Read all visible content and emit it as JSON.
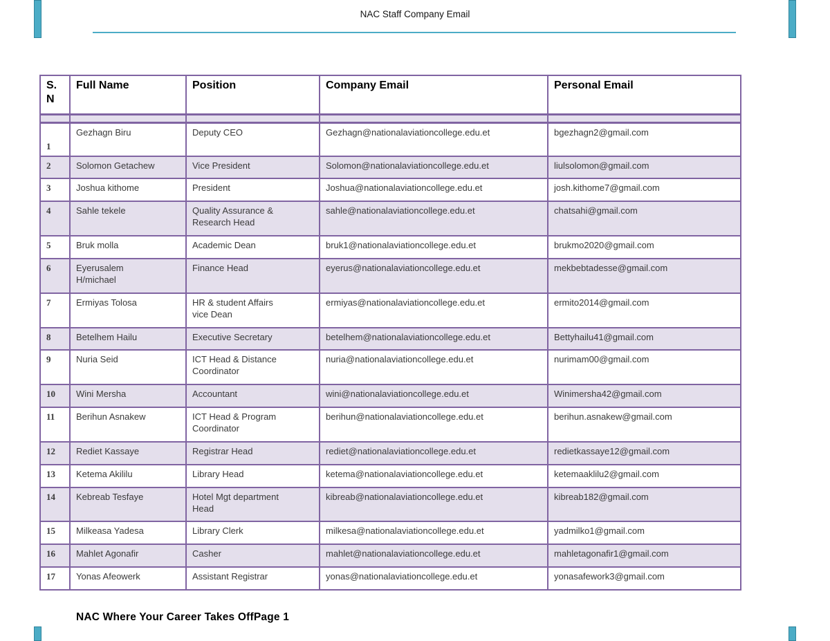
{
  "header": {
    "title": "NAC Staff Company Email"
  },
  "footer": {
    "text": "NAC Where Your Career Takes Off",
    "page_label": "Page 1"
  },
  "colors": {
    "accent_teal": "#4bacc6",
    "accent_teal_border": "#31859c",
    "table_border_purple": "#8064a2",
    "row_shade_lavender": "#e4dfec"
  },
  "table": {
    "columns": [
      "S.\nN",
      "Full Name",
      "Position",
      "Company Email",
      "Personal Email"
    ],
    "rows": [
      {
        "spacer": true,
        "sn": "",
        "name": "",
        "position": "",
        "company_email": "",
        "personal_email": ""
      },
      {
        "sn": "1",
        "name": "Gezhagn Biru",
        "position": "Deputy CEO",
        "company_email": "Gezhagn@nationalaviationcollege.edu.et",
        "personal_email": "bgezhagn2@gmail.com",
        "emphasis": "large"
      },
      {
        "sn": "2",
        "name": "Solomon Getachew",
        "position": "Vice President",
        "company_email": "Solomon@nationalaviationcollege.edu.et",
        "personal_email": "liulsolomon@gmail.com"
      },
      {
        "sn": "3",
        "name": "Joshua kithome",
        "position": "President",
        "company_email": "Joshua@nationalaviationcollege.edu.et",
        "personal_email": "josh.kithome7@gmail.com"
      },
      {
        "sn": "4",
        "name": "Sahle tekele",
        "position": "Quality Assurance &\nResearch Head",
        "company_email": "sahle@nationalaviationcollege.edu.et",
        "personal_email": "chatsahi@gmail.com"
      },
      {
        "sn": "5",
        "name": "Bruk molla",
        "position": "Academic Dean",
        "company_email": "bruk1@nationalaviationcollege.edu.et",
        "personal_email": "brukmo2020@gmail.com"
      },
      {
        "sn": "6",
        "name": "Eyerusalem\nH/michael",
        "position": "Finance Head",
        "company_email": "eyerus@nationalaviationcollege.edu.et",
        "personal_email": "mekbebtadesse@gmail.com"
      },
      {
        "sn": "7",
        "name": "Ermiyas Tolosa",
        "position": "HR & student Affairs\nvice Dean",
        "company_email": "ermiyas@nationalaviationcollege.edu.et",
        "personal_email": "ermito2014@gmail.com",
        "emphasis": "position-large"
      },
      {
        "sn": "8",
        "name": "Betelhem Hailu",
        "position": "Executive Secretary",
        "company_email": "betelhem@nationalaviationcollege.edu.et",
        "personal_email": "Bettyhailu41@gmail.com"
      },
      {
        "sn": "9",
        "name": "Nuria Seid",
        "position": "ICT Head & Distance\nCoordinator",
        "company_email": "nuria@nationalaviationcollege.edu.et",
        "personal_email": "nurimam00@gmail.com"
      },
      {
        "sn": "10",
        "name": "Wini Mersha",
        "position": "Accountant",
        "company_email": "wini@nationalaviationcollege.edu.et",
        "personal_email": "Winimersha42@gmail.com"
      },
      {
        "sn": "11",
        "name": "Berihun Asnakew",
        "position": "ICT Head & Program\nCoordinator",
        "company_email": "berihun@nationalaviationcollege.edu.et",
        "personal_email": "berihun.asnakew@gmail.com"
      },
      {
        "sn": "12",
        "name": "Rediet Kassaye",
        "position": "Registrar Head",
        "company_email": "rediet@nationalaviationcollege.edu.et",
        "personal_email": "redietkassaye12@gmail.com"
      },
      {
        "sn": "13",
        "name": "Ketema Akililu",
        "position": "Library Head",
        "company_email": "ketema@nationalaviationcollege.edu.et",
        "personal_email": "ketemaaklilu2@gmail.com"
      },
      {
        "sn": "14",
        "name": "Kebreab Tesfaye",
        "position": "Hotel Mgt department\nHead",
        "company_email": "kibreab@nationalaviationcollege.edu.et",
        "personal_email": "kibreab182@gmail.com"
      },
      {
        "sn": "15",
        "name": "Milkeasa Yadesa",
        "position": "Library Clerk",
        "company_email": "milkesa@nationalaviationcollege.edu.et",
        "personal_email": "yadmilko1@gmail.com"
      },
      {
        "sn": "16",
        "name": "Mahlet Agonafir",
        "position": "Casher",
        "company_email": "mahlet@nationalaviationcollege.edu.et",
        "personal_email": "mahletagonafir1@gmail.com"
      },
      {
        "sn": "17",
        "name": "Yonas Afeowerk",
        "position": "Assistant Registrar",
        "company_email": "yonas@nationalaviationcollege.edu.et",
        "personal_email": "yonasafework3@gmail.com"
      }
    ]
  }
}
